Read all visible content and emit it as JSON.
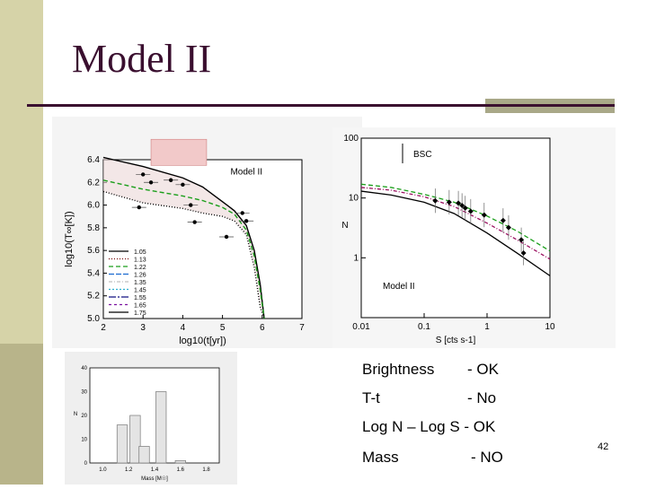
{
  "slide": {
    "title": "Model II",
    "page_number": "42"
  },
  "notes": [
    {
      "label": "Brightness",
      "status": "- OK"
    },
    {
      "label": "T-t",
      "status": "- No"
    },
    {
      "label": "Log N – Log S - OK",
      "status": ""
    },
    {
      "label": "Mass",
      "status": "- NO"
    }
  ],
  "chart_data": [
    {
      "type": "line",
      "title": "",
      "annotation": "Model II",
      "xlabel": "log10(t[yr])",
      "ylabel": "log10(T∞[K])",
      "xlim": [
        2,
        7
      ],
      "ylim": [
        5.0,
        6.4
      ],
      "xticks": [
        "2",
        "3",
        "4",
        "5",
        "6",
        "7"
      ],
      "yticks": [
        "5.0",
        "5.2",
        "5.4",
        "5.6",
        "5.8",
        "6.0",
        "6.2",
        "6.4"
      ],
      "legend_entries": [
        "1.05",
        "1.13",
        "1.22",
        "1.26",
        "1.35",
        "1.45",
        "1.55",
        "1.65",
        "1.75"
      ],
      "legend_position": "bottom-left",
      "x": [
        2.0,
        3.0,
        4.0,
        4.5,
        5.0,
        5.3,
        5.6,
        5.8,
        5.95,
        6.05
      ],
      "series": [
        {
          "name": "1.05",
          "values": [
            6.42,
            6.34,
            6.24,
            6.16,
            6.03,
            5.95,
            5.82,
            5.6,
            5.3,
            5.0
          ]
        },
        {
          "name": "1.22",
          "values": [
            6.22,
            6.14,
            6.08,
            6.04,
            5.98,
            5.92,
            5.78,
            5.55,
            5.25,
            5.0
          ]
        },
        {
          "name": "1.75",
          "values": [
            6.12,
            6.02,
            5.97,
            5.93,
            5.9,
            5.86,
            5.74,
            5.45,
            5.1,
            5.0
          ]
        }
      ],
      "observations": [
        {
          "x": 3.0,
          "y": 6.27
        },
        {
          "x": 3.7,
          "y": 6.22
        },
        {
          "x": 3.2,
          "y": 6.2
        },
        {
          "x": 4.0,
          "y": 6.18
        },
        {
          "x": 4.2,
          "y": 6.0
        },
        {
          "x": 2.9,
          "y": 5.98
        },
        {
          "x": 4.3,
          "y": 5.85
        },
        {
          "x": 5.1,
          "y": 5.72
        },
        {
          "x": 5.5,
          "y": 5.93
        },
        {
          "x": 5.6,
          "y": 5.86
        }
      ]
    },
    {
      "type": "line",
      "title": "",
      "annotation": "Model II",
      "label_bsc": "BSC",
      "xlabel": "S [cts s-1]",
      "ylabel": "N",
      "xlim": [
        0.01,
        10
      ],
      "ylim": [
        0.1,
        100
      ],
      "xticks": [
        "0.01",
        "0.1",
        "1",
        "10"
      ],
      "yticks": [
        "1",
        "10",
        "100"
      ],
      "log_x": true,
      "log_y": true,
      "x": [
        0.01,
        0.03,
        0.1,
        0.3,
        1,
        3,
        10
      ],
      "series": [
        {
          "name": "1.05",
          "values": [
            17,
            15,
            11.5,
            8.5,
            5.0,
            2.8,
            1.3
          ]
        },
        {
          "name": "1.35",
          "values": [
            15,
            13.5,
            10.5,
            7.2,
            3.8,
            2.0,
            0.95
          ]
        },
        {
          "name": "1.75",
          "values": [
            13,
            11.2,
            8.5,
            5.5,
            2.6,
            1.2,
            0.5
          ]
        }
      ],
      "observations": [
        {
          "x": 0.15,
          "y": 9.0
        },
        {
          "x": 0.25,
          "y": 8.5
        },
        {
          "x": 0.35,
          "y": 8.2
        },
        {
          "x": 0.4,
          "y": 7.5
        },
        {
          "x": 0.45,
          "y": 6.8
        },
        {
          "x": 0.55,
          "y": 6.0
        },
        {
          "x": 0.9,
          "y": 5.2
        },
        {
          "x": 1.8,
          "y": 4.2
        },
        {
          "x": 2.2,
          "y": 3.2
        },
        {
          "x": 3.5,
          "y": 2.0
        },
        {
          "x": 3.8,
          "y": 1.2
        }
      ]
    },
    {
      "type": "bar",
      "title": "",
      "xlabel": "Mass [M☉]",
      "ylabel": "N",
      "xticks": [
        "1.0",
        "1.2",
        "1.4",
        "1.6",
        "1.8"
      ],
      "yticks": [
        "0",
        "10",
        "20",
        "30",
        "40"
      ],
      "ylim": [
        0,
        40
      ],
      "categories": [
        "1.15",
        "1.25",
        "1.32",
        "1.45",
        "1.6"
      ],
      "values": [
        16,
        20,
        7,
        30,
        1
      ]
    }
  ]
}
